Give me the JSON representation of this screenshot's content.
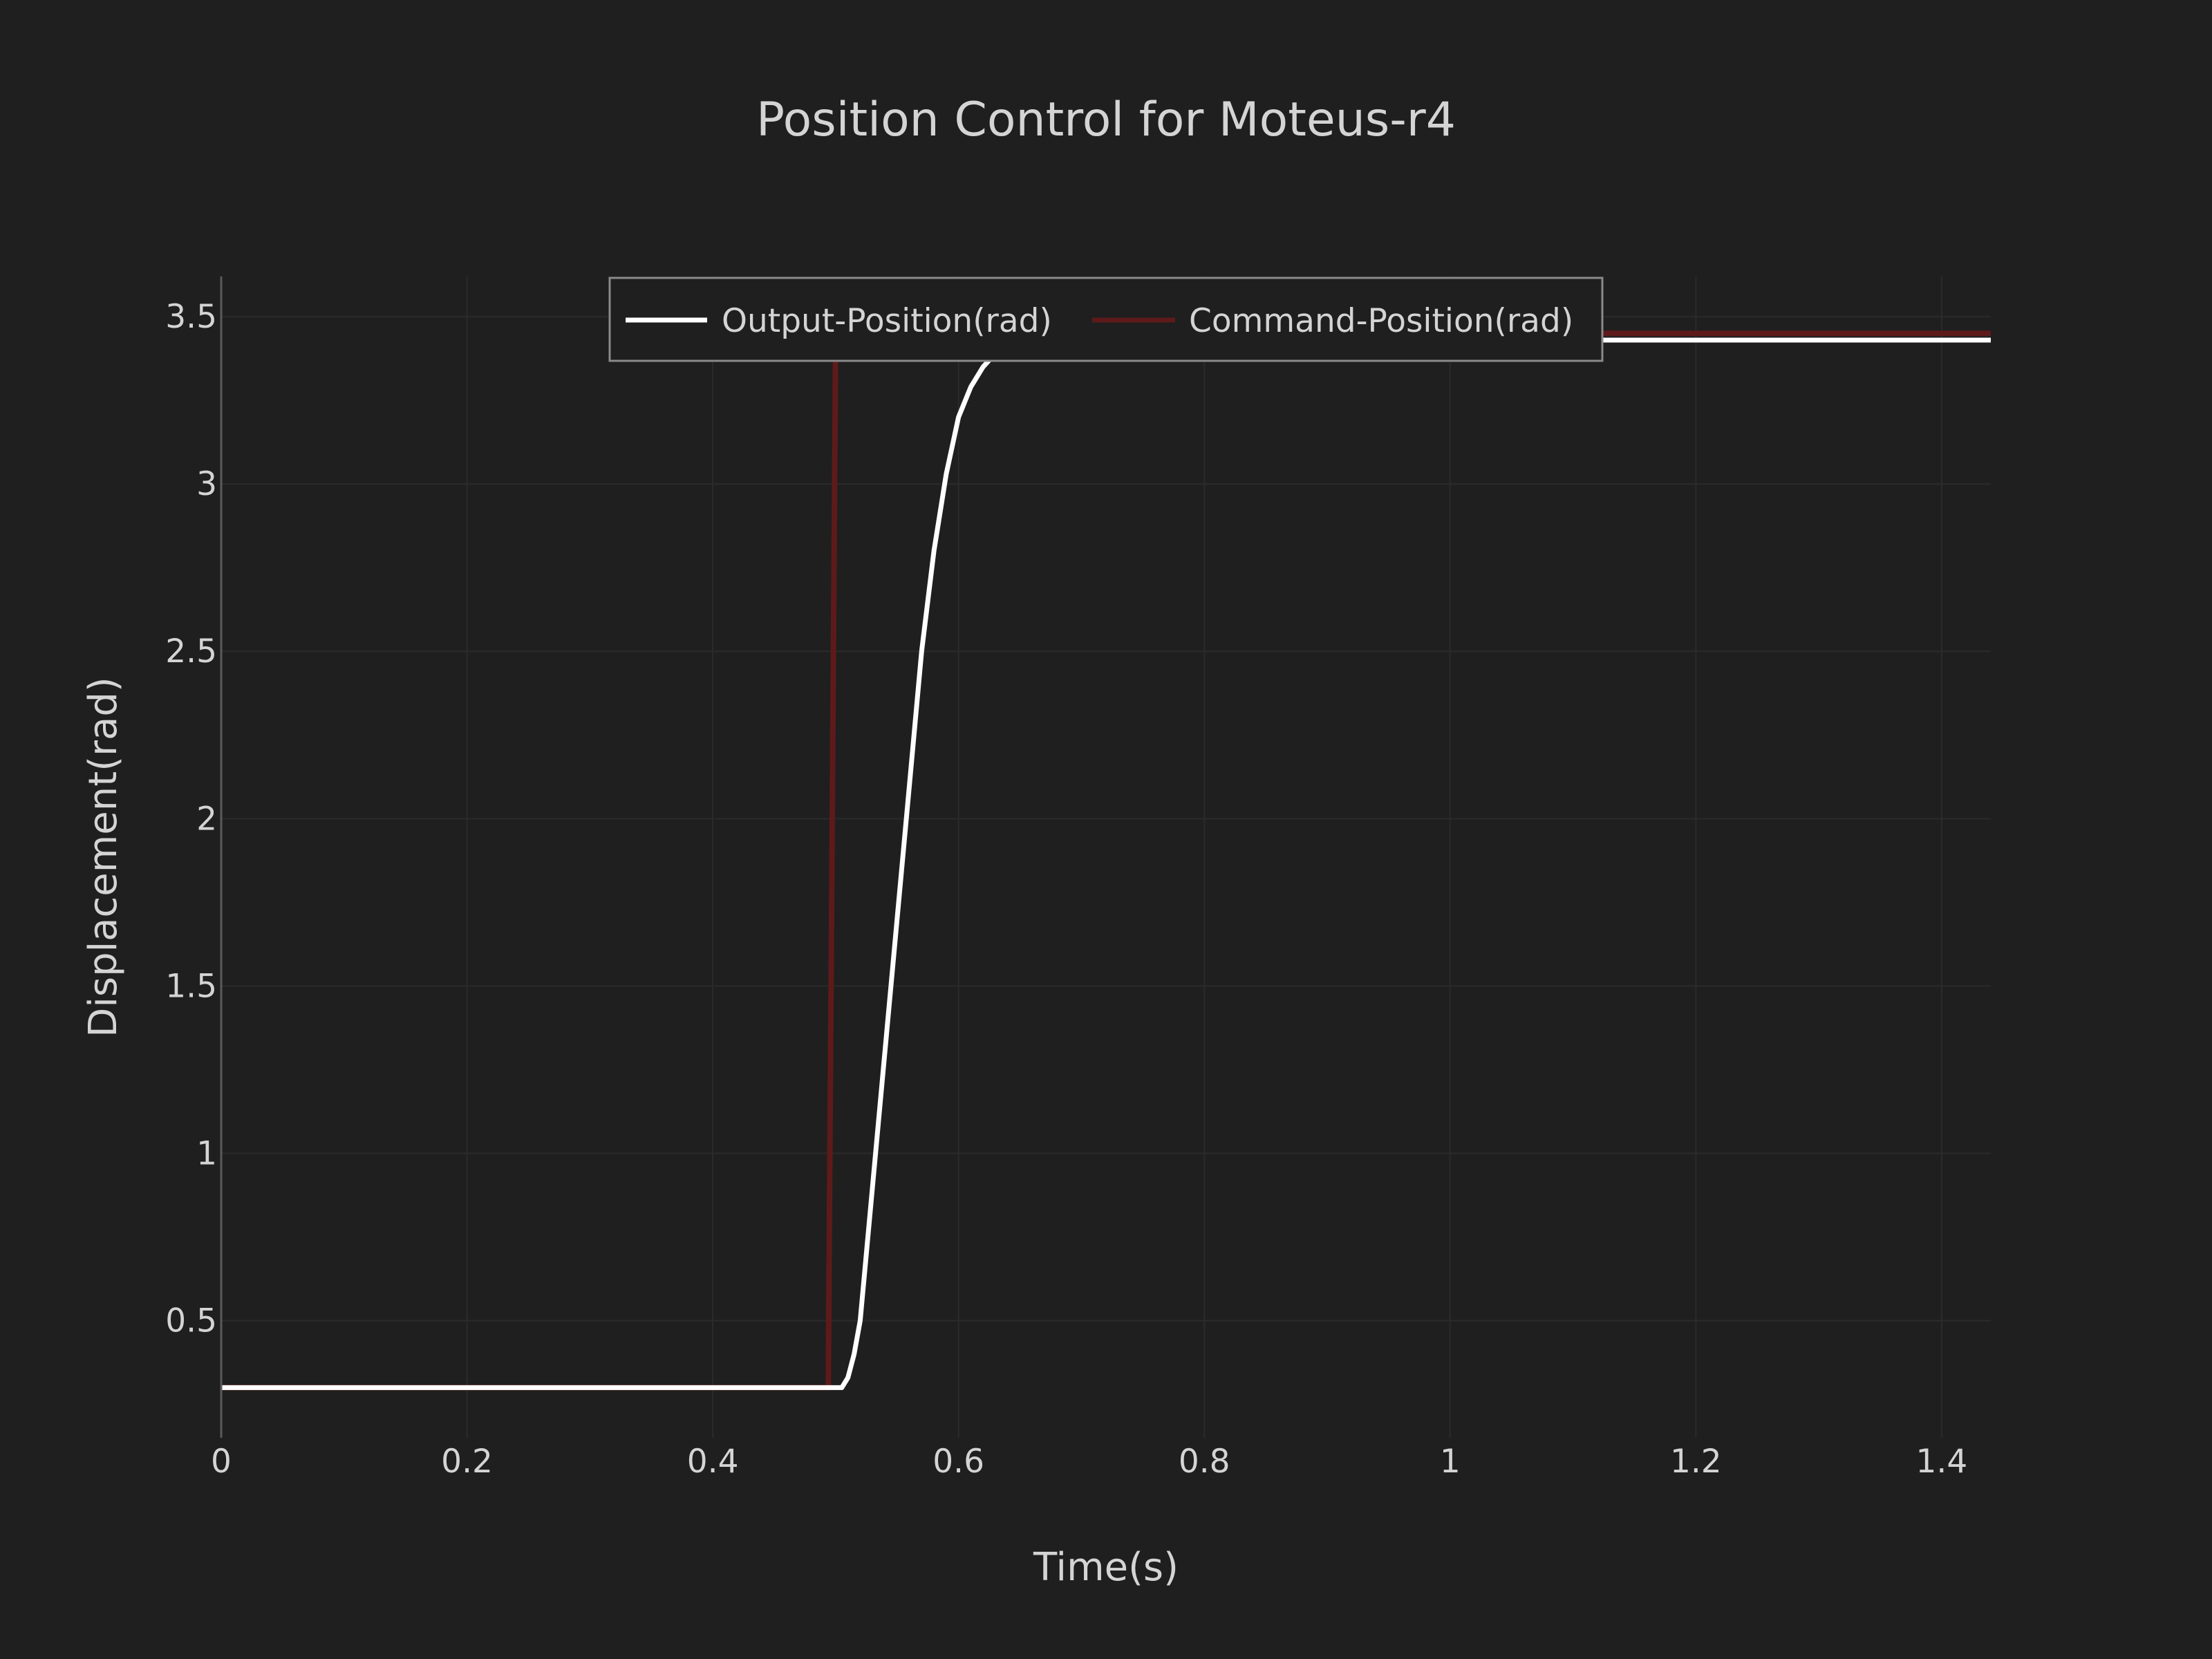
{
  "chart_data": {
    "type": "line",
    "title": "Position Control for Moteus-r4",
    "xlabel": "Time(s)",
    "ylabel": "Displacement(rad)",
    "xlim": [
      0,
      1.44
    ],
    "ylim": [
      0.15,
      3.62
    ],
    "x_ticks": [
      0,
      0.2,
      0.4,
      0.6,
      0.8,
      1,
      1.2,
      1.4
    ],
    "x_tick_labels": [
      "0",
      "0.2",
      "0.4",
      "0.6",
      "0.8",
      "1",
      "1.2",
      "1.4"
    ],
    "y_ticks": [
      0.5,
      1,
      1.5,
      2,
      2.5,
      3,
      3.5
    ],
    "y_tick_labels": [
      "0.5",
      "1",
      "1.5",
      "2",
      "2.5",
      "3",
      "3.5"
    ],
    "grid": true,
    "legend_position": "top-center",
    "series": [
      {
        "name": "Output-Position(rad)",
        "color": "#ffffff",
        "x": [
          0,
          0.49,
          0.5,
          0.505,
          0.51,
          0.515,
          0.52,
          0.53,
          0.54,
          0.55,
          0.56,
          0.57,
          0.58,
          0.59,
          0.6,
          0.61,
          0.62,
          0.63,
          0.64,
          0.65,
          0.66,
          0.68,
          0.7,
          0.75,
          0.8,
          0.9,
          1.0,
          1.2,
          1.44
        ],
        "y": [
          0.3,
          0.3,
          0.3,
          0.3,
          0.33,
          0.4,
          0.5,
          0.9,
          1.3,
          1.7,
          2.1,
          2.5,
          2.8,
          3.03,
          3.2,
          3.29,
          3.35,
          3.39,
          3.41,
          3.425,
          3.43,
          3.432,
          3.432,
          3.43,
          3.43,
          3.43,
          3.43,
          3.43,
          3.43
        ]
      },
      {
        "name": "Command-Position(rad)",
        "color": "#5e1a1a",
        "x": [
          0,
          0.494,
          0.5,
          1.44
        ],
        "y": [
          0.3,
          0.3,
          3.45,
          3.45
        ]
      }
    ]
  }
}
